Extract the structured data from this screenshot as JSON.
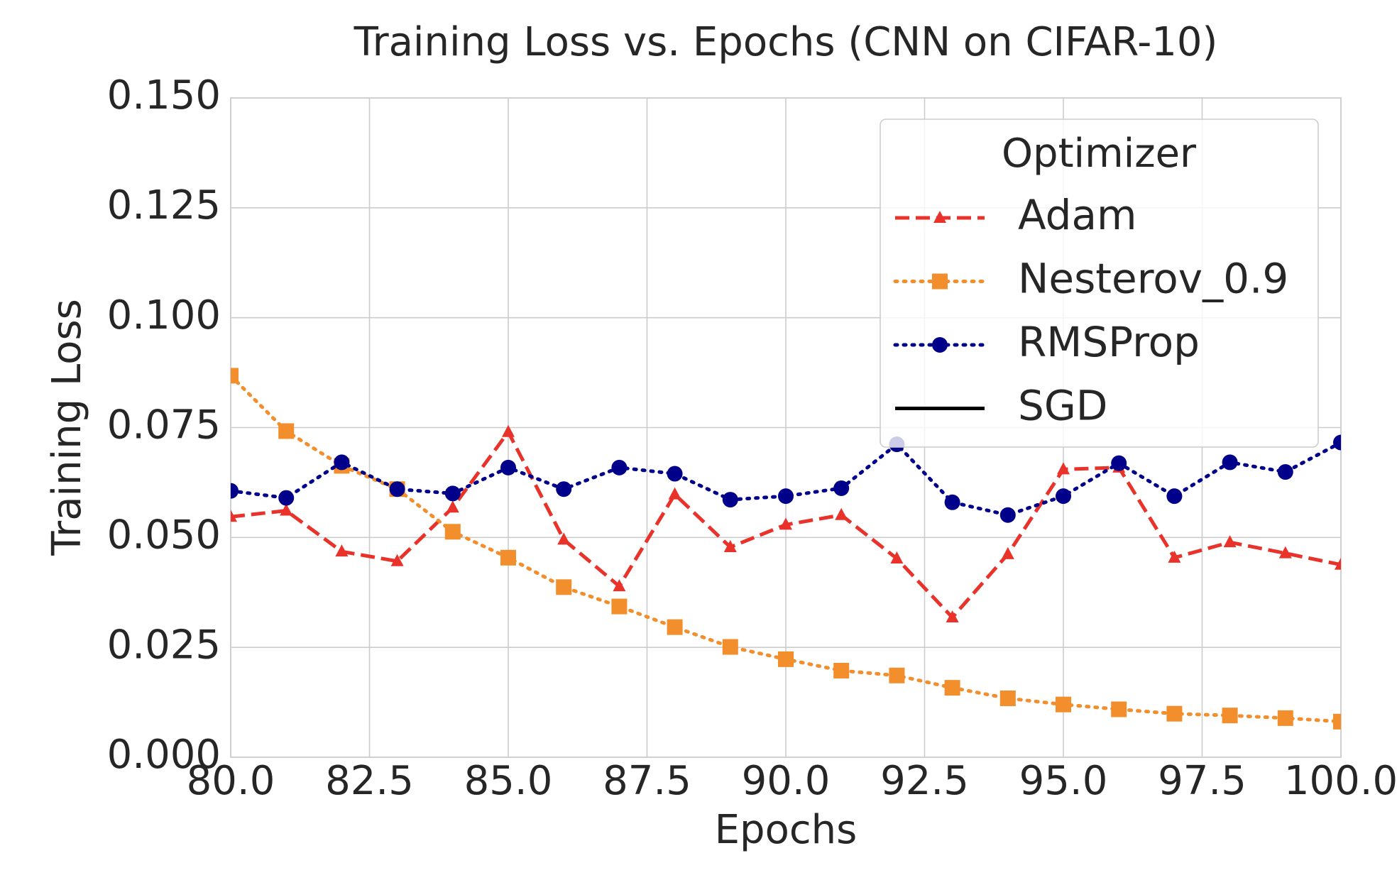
{
  "chart_data": {
    "type": "line",
    "title": "Training Loss vs. Epochs (CNN on CIFAR-10)",
    "x_label": "Epochs",
    "y_label": "Training Loss",
    "legend_title": "Optimizer",
    "legend_corner": "upper right",
    "grid": true,
    "x": [
      80,
      81,
      82,
      83,
      84,
      85,
      86,
      87,
      88,
      89,
      90,
      91,
      92,
      93,
      94,
      95,
      96,
      97,
      98,
      99,
      100
    ],
    "xlim": [
      80,
      100
    ],
    "xticks": [
      {
        "value": 80,
        "label": "80.0"
      },
      {
        "value": 82.5,
        "label": "82.5"
      },
      {
        "value": 85,
        "label": "85.0"
      },
      {
        "value": 87.5,
        "label": "87.5"
      },
      {
        "value": 90,
        "label": "90.0"
      },
      {
        "value": 92.5,
        "label": "92.5"
      },
      {
        "value": 95,
        "label": "95.0"
      },
      {
        "value": 97.5,
        "label": "97.5"
      },
      {
        "value": 100,
        "label": "100.0"
      }
    ],
    "ylim": [
      0,
      0.15
    ],
    "yticks": [
      {
        "value": 0,
        "label": "0.000"
      },
      {
        "value": 0.025,
        "label": "0.025"
      },
      {
        "value": 0.05,
        "label": "0.050"
      },
      {
        "value": 0.075,
        "label": "0.075"
      },
      {
        "value": 0.1,
        "label": "0.100"
      },
      {
        "value": 0.125,
        "label": "0.125"
      },
      {
        "value": 0.15,
        "label": "0.150"
      }
    ],
    "series": [
      {
        "name": "Adam",
        "color": "#e8322a",
        "linestyle": "dashed",
        "marker": "triangle",
        "values": [
          0.0547,
          0.0561,
          0.0468,
          0.0446,
          0.0568,
          0.074,
          0.0495,
          0.0389,
          0.0598,
          0.0478,
          0.0529,
          0.0551,
          0.0452,
          0.0318,
          0.0462,
          0.0655,
          0.0659,
          0.0454,
          0.0489,
          0.0464,
          0.0438
        ]
      },
      {
        "name": "Nesterov_0.9",
        "color": "#f28e2b",
        "linestyle": "dotted",
        "marker": "square",
        "values": [
          0.0868,
          0.0742,
          0.0663,
          0.061,
          0.0513,
          0.0454,
          0.0387,
          0.0343,
          0.0296,
          0.0251,
          0.0223,
          0.0197,
          0.0186,
          0.0158,
          0.0134,
          0.012,
          0.0109,
          0.0099,
          0.0095,
          0.0089,
          0.0081
        ]
      },
      {
        "name": "RMSProp",
        "color": "#00008b",
        "linestyle": "dotted",
        "marker": "circle",
        "values": [
          0.0606,
          0.059,
          0.0671,
          0.061,
          0.06,
          0.0659,
          0.061,
          0.0659,
          0.0645,
          0.0586,
          0.0594,
          0.0612,
          0.0712,
          0.058,
          0.0551,
          0.0594,
          0.0669,
          0.0594,
          0.0671,
          0.0649,
          0.0716
        ]
      },
      {
        "name": "SGD",
        "color": "#000000",
        "linestyle": "solid",
        "marker": "none",
        "values": [
          null,
          null,
          null,
          null,
          null,
          null,
          null,
          null,
          null,
          null,
          null,
          null,
          null,
          null,
          null,
          null,
          null,
          null,
          null,
          null,
          null
        ]
      }
    ]
  }
}
